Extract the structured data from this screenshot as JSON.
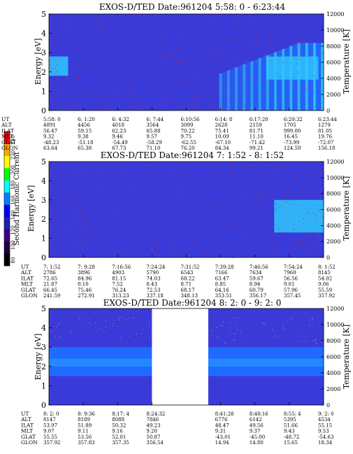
{
  "colorbar": {
    "label": "Second Harmonic Current",
    "ticks": [
      "240",
      "220",
      "200",
      "180",
      "160",
      "140",
      "120",
      "100",
      "80"
    ],
    "colors": [
      "#ff0000",
      "#ffa500",
      "#ffff00",
      "#00ff00",
      "#00ffff",
      "#0080ff",
      "#0000ff",
      "#2020b0",
      "#400080",
      "#200040",
      "#000000"
    ]
  },
  "panel_colors": {
    "background": "#3a3ad8",
    "speckle_red": "#c03040",
    "band": "#1f6bff",
    "band_light": "#2fc8ff",
    "gap": "#ffffff"
  },
  "chart_data": [
    {
      "type": "heatmap",
      "title": "EXOS-D/TED   Date:961204   5:58: 0 - 6:23:44",
      "ylabel": "Energy [eV]",
      "y2label": "Temperature [K]",
      "ylim": [
        0,
        5
      ],
      "yticks": [
        "0",
        "1",
        "2",
        "3",
        "4",
        "5"
      ],
      "y2lim": [
        0,
        12000
      ],
      "y2ticks": [
        "0",
        "2000",
        "4000",
        "6000",
        "8000",
        "10000",
        "12000"
      ],
      "row_labels": [
        "UT",
        "ALT",
        "ILAT",
        "MLT",
        "GLAT",
        "GLON"
      ],
      "columns": [
        [
          "5:58: 0",
          "4891",
          "56.47",
          "9.32",
          "-48.23",
          "63.64"
        ],
        [
          "6: 1:20",
          "4456",
          "59.15",
          "9.38",
          "-51.18",
          "65.38"
        ],
        [
          "6: 4:32",
          "4018",
          "62.23",
          "9.46",
          "-54.49",
          "67.73"
        ],
        [
          "6: 7:44",
          "3564",
          "65.88",
          "9.57",
          "-58.29",
          "71.10"
        ],
        [
          "6:10:56",
          "3099",
          "70.22",
          "9.75",
          "-62.55",
          "76.20"
        ],
        [
          "6:14: 8",
          "2628",
          "75.41",
          "10.09",
          "-67.10",
          "84.34"
        ],
        [
          "6:17:20",
          "2159",
          "81.71",
          "11.10",
          "-71.42",
          "99.21"
        ],
        [
          "6:20:32",
          "1705",
          "999.00",
          "16.45",
          "-73.99",
          "124.59"
        ],
        [
          "6:23:44",
          "1279",
          "81.05",
          "19.76",
          "-72.07",
          "156.18"
        ]
      ],
      "features": [
        {
          "kind": "band",
          "x_range": [
            0.0,
            0.07
          ],
          "energy_range": [
            1.8,
            2.8
          ],
          "tone": "light"
        },
        {
          "kind": "wedge",
          "x_range": [
            0.62,
            1.0
          ],
          "energy_range": [
            0.0,
            3.5
          ],
          "tone": "light"
        }
      ],
      "gaps": []
    },
    {
      "type": "heatmap",
      "title": "EXOS-D/TED   Date:961204   7: 1:52 - 8: 1:52",
      "ylabel": "Energy [eV]",
      "y2label": "Temperature [K]",
      "ylim": [
        0,
        5
      ],
      "yticks": [
        "0",
        "1",
        "2",
        "3",
        "4",
        "5"
      ],
      "y2lim": [
        0,
        12000
      ],
      "y2ticks": [
        "0",
        "2000",
        "4000",
        "6000",
        "8000",
        "10000",
        "12000"
      ],
      "row_labels": [
        "UT",
        "ALT",
        "ILAT",
        "MLT",
        "GLAT",
        "GLON"
      ],
      "columns": [
        [
          "7: 1:52",
          "2786",
          "72.65",
          "21.87",
          "66.45",
          "241.59"
        ],
        [
          "7: 9:28",
          "3896",
          "84.96",
          "0.10",
          "75.46",
          "272.91"
        ],
        [
          "7:16:56",
          "4903",
          "81.15",
          "7.52",
          "76.24",
          "313.23"
        ],
        [
          "7:24:24",
          "5790",
          "74.03",
          "8.43",
          "72.53",
          "337.18"
        ],
        [
          "7:31:52",
          "6543",
          "68.22",
          "8.71",
          "68.17",
          "348.13"
        ],
        [
          "7:39:28",
          "7166",
          "63.47",
          "8.85",
          "64.16",
          "353.51"
        ],
        [
          "7:46:56",
          "7634",
          "59.67",
          "8.94",
          "60.79",
          "356.17"
        ],
        [
          "7:54:24",
          "7960",
          "56.56",
          "9.01",
          "57.96",
          "357.45"
        ],
        [
          "8: 1:52",
          "8145",
          "54.02",
          "9.06",
          "55.59",
          "357.92"
        ]
      ],
      "features": [
        {
          "kind": "band",
          "x_range": [
            0.82,
            1.0
          ],
          "energy_range": [
            1.3,
            3.0
          ],
          "tone": "light"
        }
      ],
      "gaps": []
    },
    {
      "type": "heatmap",
      "title": "EXOS-D/TED   Date:961204   8: 2: 0 - 9: 2: 0",
      "ylabel": "Energy [eV]",
      "y2label": "Temperature [K]",
      "ylim": [
        0,
        5
      ],
      "yticks": [
        "0",
        "1",
        "2",
        "3",
        "4",
        "5"
      ],
      "y2lim": [
        0,
        12000
      ],
      "y2ticks": [
        "0",
        "2000",
        "4000",
        "6000",
        "8000",
        "10000",
        "12000"
      ],
      "row_labels": [
        "UT",
        "ALT",
        "ILAT",
        "MLT",
        "GLAT",
        "GLON"
      ],
      "columns": [
        [
          "8: 2: 0",
          "8147",
          "53.97",
          "9.07",
          "55.55",
          "357.92"
        ],
        [
          "8: 9:36",
          "8189",
          "51.89",
          "9.11",
          "53.56",
          "357.83"
        ],
        [
          "8:17: 4",
          "8088",
          "50.32",
          "9.16",
          "52.01",
          "357.35"
        ],
        [
          "8:24:32",
          "7846",
          "49.23",
          "9.20",
          "50.87",
          "356.54"
        ],
        [
          "",
          "",
          "",
          "",
          "",
          ""
        ],
        [
          "8:41:28",
          "6776",
          "48.47",
          "9.31",
          "-43.01",
          "14.94"
        ],
        [
          "8:48:16",
          "6142",
          "49.56",
          "9.37",
          "-45.00",
          "14.80"
        ],
        [
          "8:55: 4",
          "5395",
          "51.66",
          "9.43",
          "-48.72",
          "15.65"
        ],
        [
          "9: 2: 0",
          "4534",
          "55.15",
          "9.53",
          "-54.63",
          "18.34"
        ]
      ],
      "features": [
        {
          "kind": "band",
          "x_range": [
            0.0,
            1.0
          ],
          "energy_range": [
            1.5,
            3.0
          ],
          "tone": "dark"
        }
      ],
      "gaps": [
        [
          0.375,
          0.58
        ]
      ]
    }
  ]
}
